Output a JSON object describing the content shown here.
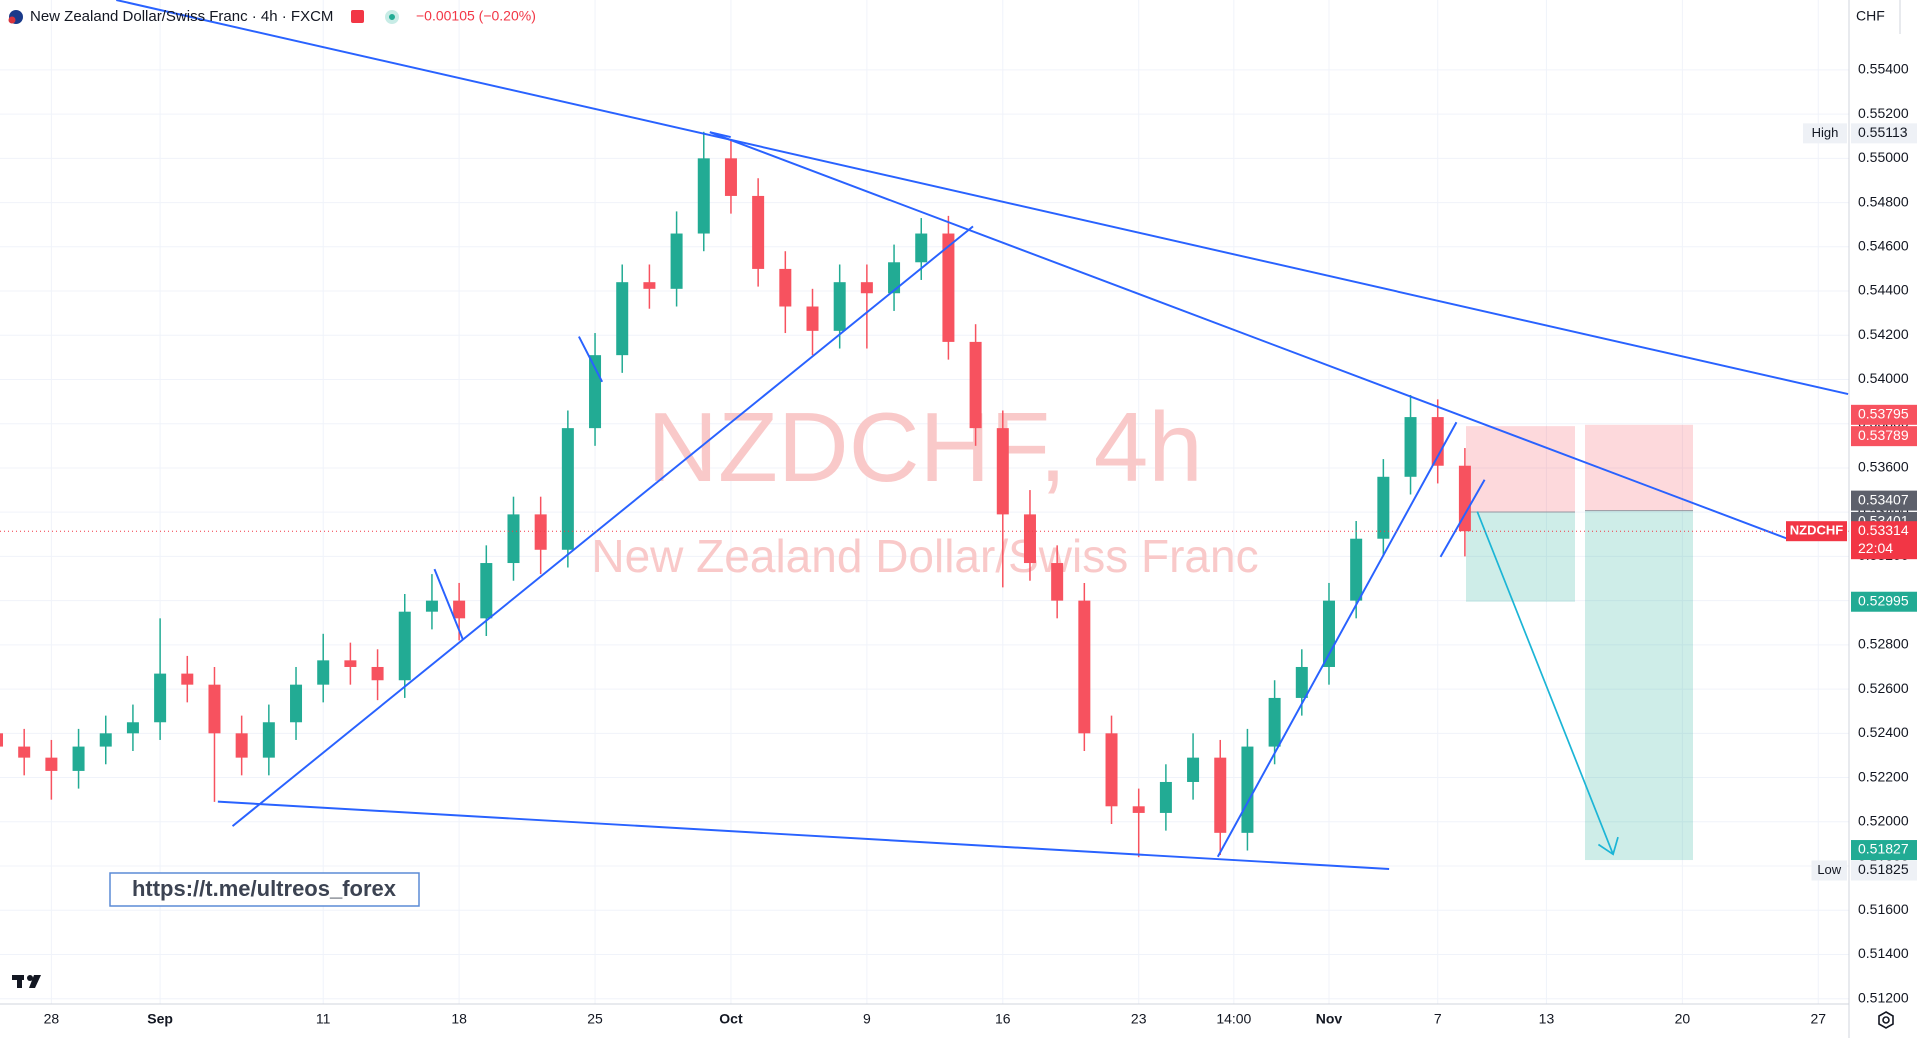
{
  "header": {
    "symbol": "New Zealand Dollar/Swiss Franc · 4h · FXCM",
    "change": "−0.00105 (−0.20%)",
    "currency": "CHF"
  },
  "watermark": {
    "title": "NZDCHF, 4h",
    "subtitle": "New Zealand Dollar/Swiss Franc"
  },
  "link": "https://t.me/ultreos_forex",
  "chart_data": {
    "type": "candlestick",
    "series": [
      {
        "name": "NZDCHF",
        "up_color": "#22ab94",
        "down_color": "#f7525f",
        "x": [
          -2,
          -1,
          0,
          1,
          2,
          3,
          4,
          5,
          6,
          7,
          8,
          9,
          10,
          11,
          12,
          13,
          14,
          15,
          16,
          17,
          18,
          19,
          20,
          21,
          22,
          23,
          24,
          25,
          26,
          27,
          28,
          29,
          30,
          31,
          32,
          33,
          34,
          35,
          36,
          37,
          38,
          39,
          40,
          41,
          42,
          43,
          44,
          45,
          46,
          47,
          48,
          49,
          50,
          51,
          52
        ],
        "open": [
          0.524,
          0.5234,
          0.5229,
          0.5223,
          0.5234,
          0.524,
          0.5245,
          0.5267,
          0.5262,
          0.524,
          0.5229,
          0.5245,
          0.5262,
          0.5273,
          0.527,
          0.5264,
          0.5295,
          0.53,
          0.5292,
          0.5317,
          0.5339,
          0.5323,
          0.5378,
          0.5411,
          0.5444,
          0.5441,
          0.5466,
          0.55,
          0.5483,
          0.545,
          0.5433,
          0.5422,
          0.5444,
          0.5439,
          0.5453,
          0.5466,
          0.5417,
          0.5378,
          0.5339,
          0.5317,
          0.53,
          0.524,
          0.5207,
          0.5204,
          0.5218,
          0.5229,
          0.5195,
          0.5234,
          0.5256,
          0.527,
          0.53,
          0.5328,
          0.5356,
          0.5383,
          0.5361
        ],
        "high": [
          0.5248,
          0.5242,
          0.5237,
          0.5242,
          0.5248,
          0.5253,
          0.5292,
          0.5275,
          0.527,
          0.5248,
          0.5253,
          0.527,
          0.5285,
          0.5281,
          0.5278,
          0.5303,
          0.5312,
          0.5308,
          0.5325,
          0.5347,
          0.5347,
          0.5386,
          0.5421,
          0.5452,
          0.5452,
          0.5476,
          0.5512,
          0.5508,
          0.5491,
          0.5458,
          0.5441,
          0.5452,
          0.5452,
          0.5461,
          0.5473,
          0.5474,
          0.5425,
          0.5386,
          0.535,
          0.5325,
          0.5308,
          0.5248,
          0.5215,
          0.5226,
          0.524,
          0.5237,
          0.5242,
          0.5264,
          0.5278,
          0.5308,
          0.5336,
          0.5364,
          0.5393,
          0.5391,
          0.5369
        ],
        "low": [
          0.5226,
          0.5221,
          0.521,
          0.5215,
          0.5226,
          0.5232,
          0.5237,
          0.5254,
          0.5209,
          0.5221,
          0.5221,
          0.5237,
          0.5254,
          0.5262,
          0.5255,
          0.5256,
          0.5287,
          0.5282,
          0.5284,
          0.5309,
          0.5312,
          0.5315,
          0.537,
          0.5403,
          0.5432,
          0.5433,
          0.5458,
          0.5475,
          0.5442,
          0.5421,
          0.5411,
          0.5414,
          0.5414,
          0.5431,
          0.5445,
          0.5409,
          0.537,
          0.5306,
          0.5309,
          0.5292,
          0.5232,
          0.5199,
          0.5184,
          0.5196,
          0.521,
          0.5185,
          0.5187,
          0.5226,
          0.5248,
          0.5262,
          0.5292,
          0.532,
          0.5348,
          0.5353,
          0.532
        ],
        "close": [
          0.5234,
          0.5229,
          0.5223,
          0.5234,
          0.524,
          0.5245,
          0.5267,
          0.5262,
          0.524,
          0.5229,
          0.5245,
          0.5262,
          0.5273,
          0.527,
          0.5264,
          0.5295,
          0.53,
          0.5292,
          0.5317,
          0.5339,
          0.5323,
          0.5378,
          0.5411,
          0.5444,
          0.5441,
          0.5466,
          0.55,
          0.5483,
          0.545,
          0.5433,
          0.5422,
          0.5444,
          0.5439,
          0.5453,
          0.5466,
          0.5417,
          0.5378,
          0.5339,
          0.5317,
          0.53,
          0.524,
          0.5207,
          0.5204,
          0.5218,
          0.5229,
          0.5195,
          0.5234,
          0.5256,
          0.527,
          0.53,
          0.5328,
          0.5356,
          0.5383,
          0.5361,
          0.53314
        ]
      }
    ],
    "ylim": [
      0.51176,
      0.55716
    ],
    "yticks": [
      {
        "value": 0.512,
        "label": "0.51200"
      },
      {
        "value": 0.514,
        "label": "0.51400"
      },
      {
        "value": 0.516,
        "label": "0.51600"
      },
      {
        "value": 0.518,
        "label": "0.51800"
      },
      {
        "value": 0.52,
        "label": "0.52000"
      },
      {
        "value": 0.522,
        "label": "0.52200"
      },
      {
        "value": 0.524,
        "label": "0.52400"
      },
      {
        "value": 0.526,
        "label": "0.52600"
      },
      {
        "value": 0.528,
        "label": "0.52800"
      },
      {
        "value": 0.53,
        "label": "0.53000"
      },
      {
        "value": 0.532,
        "label": "0.53200"
      },
      {
        "value": 0.534,
        "label": "0.53400"
      },
      {
        "value": 0.536,
        "label": "0.53600"
      },
      {
        "value": 0.538,
        "label": "0.53800"
      },
      {
        "value": 0.54,
        "label": "0.54000"
      },
      {
        "value": 0.542,
        "label": "0.54200"
      },
      {
        "value": 0.544,
        "label": "0.54400"
      },
      {
        "value": 0.546,
        "label": "0.54600"
      },
      {
        "value": 0.548,
        "label": "0.54800"
      },
      {
        "value": 0.55,
        "label": "0.55000"
      },
      {
        "value": 0.552,
        "label": "0.55200"
      },
      {
        "value": 0.554,
        "label": "0.55400"
      }
    ],
    "xlim": [
      -1.89,
      66.13
    ],
    "xticks": [
      {
        "value": 0,
        "label": "28"
      },
      {
        "value": 4,
        "label": "Sep"
      },
      {
        "value": 10,
        "label": "11"
      },
      {
        "value": 15,
        "label": "18"
      },
      {
        "value": 20,
        "label": "25"
      },
      {
        "value": 25,
        "label": "Oct"
      },
      {
        "value": 30,
        "label": "9"
      },
      {
        "value": 35,
        "label": "16"
      },
      {
        "value": 40,
        "label": "23"
      },
      {
        "value": 43.5,
        "label": "14:00"
      },
      {
        "value": 47,
        "label": "Nov"
      },
      {
        "value": 51,
        "label": "7"
      },
      {
        "value": 55,
        "label": "13"
      },
      {
        "value": 60,
        "label": "20"
      },
      {
        "value": 65,
        "label": "27"
      }
    ],
    "grid": true,
    "price_labels": [
      {
        "label": "High",
        "value": 0.55113,
        "color": "#eef1f6"
      },
      {
        "value": 0.53795,
        "color": "#f7525f"
      },
      {
        "value": 0.53789,
        "color": "#f7525f"
      },
      {
        "value": 0.53407,
        "color": "#5d606b"
      },
      {
        "value": 0.53401,
        "color": "#5d606b"
      },
      {
        "label": "NZDCHF",
        "value": 0.53314,
        "color": "#f23645",
        "countdown": "22:04"
      },
      {
        "value": 0.52995,
        "color": "#22ab94"
      },
      {
        "value": 0.51827,
        "color": "#22ab94"
      },
      {
        "label": "Low",
        "value": 0.51825,
        "color": "#eef1f6"
      }
    ]
  }
}
